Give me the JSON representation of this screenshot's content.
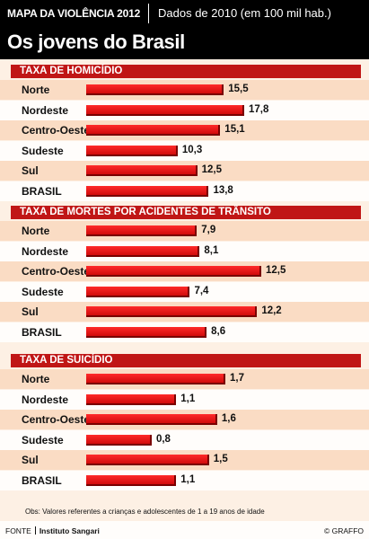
{
  "header": {
    "top_left": "MAPA DA VIOLÊNCIA 2012",
    "top_right": "Dados de 2010 (em 100 mil hab.)",
    "title": "Os jovens do Brasil"
  },
  "chart_data": [
    {
      "type": "bar",
      "title": "TAXA DE HOMICÍDIO",
      "categories": [
        "Norte",
        "Nordeste",
        "Centro-Oeste",
        "Sudeste",
        "Sul",
        "BRASIL"
      ],
      "values": [
        15.5,
        17.8,
        15.1,
        10.3,
        12.5,
        13.8
      ],
      "value_labels": [
        "15,5",
        "17,8",
        "15,1",
        "10,3",
        "12,5",
        "13,8"
      ]
    },
    {
      "type": "bar",
      "title": "TAXA DE MORTES POR ACIDENTES DE TRÂNSITO",
      "categories": [
        "Norte",
        "Nordeste",
        "Centro-Oeste",
        "Sudeste",
        "Sul",
        "BRASIL"
      ],
      "values": [
        7.9,
        8.1,
        12.5,
        7.4,
        12.2,
        8.6
      ],
      "value_labels": [
        "7,9",
        "8,1",
        "12,5",
        "7,4",
        "12,2",
        "8,6"
      ]
    },
    {
      "type": "bar",
      "title": "TAXA DE SUICÍDIO",
      "categories": [
        "Norte",
        "Nordeste",
        "Centro-Oeste",
        "Sudeste",
        "Sul",
        "BRASIL"
      ],
      "values": [
        1.7,
        1.1,
        1.6,
        0.8,
        1.5,
        1.1
      ],
      "value_labels": [
        "1,7",
        "1,1",
        "1,6",
        "0,8",
        "1,5",
        "1,1"
      ]
    }
  ],
  "note": "Obs: Valores referentes a crianças e adolescentes de 1 a 19 anos de idade",
  "footer": {
    "source_label": "FONTE",
    "source": "Instituto Sangari",
    "credit": "© GRAFFO"
  },
  "colors": {
    "bar": "#e01010",
    "section_header": "#c01616",
    "row_peach": "#fadcc4",
    "header_bg": "#000000"
  }
}
